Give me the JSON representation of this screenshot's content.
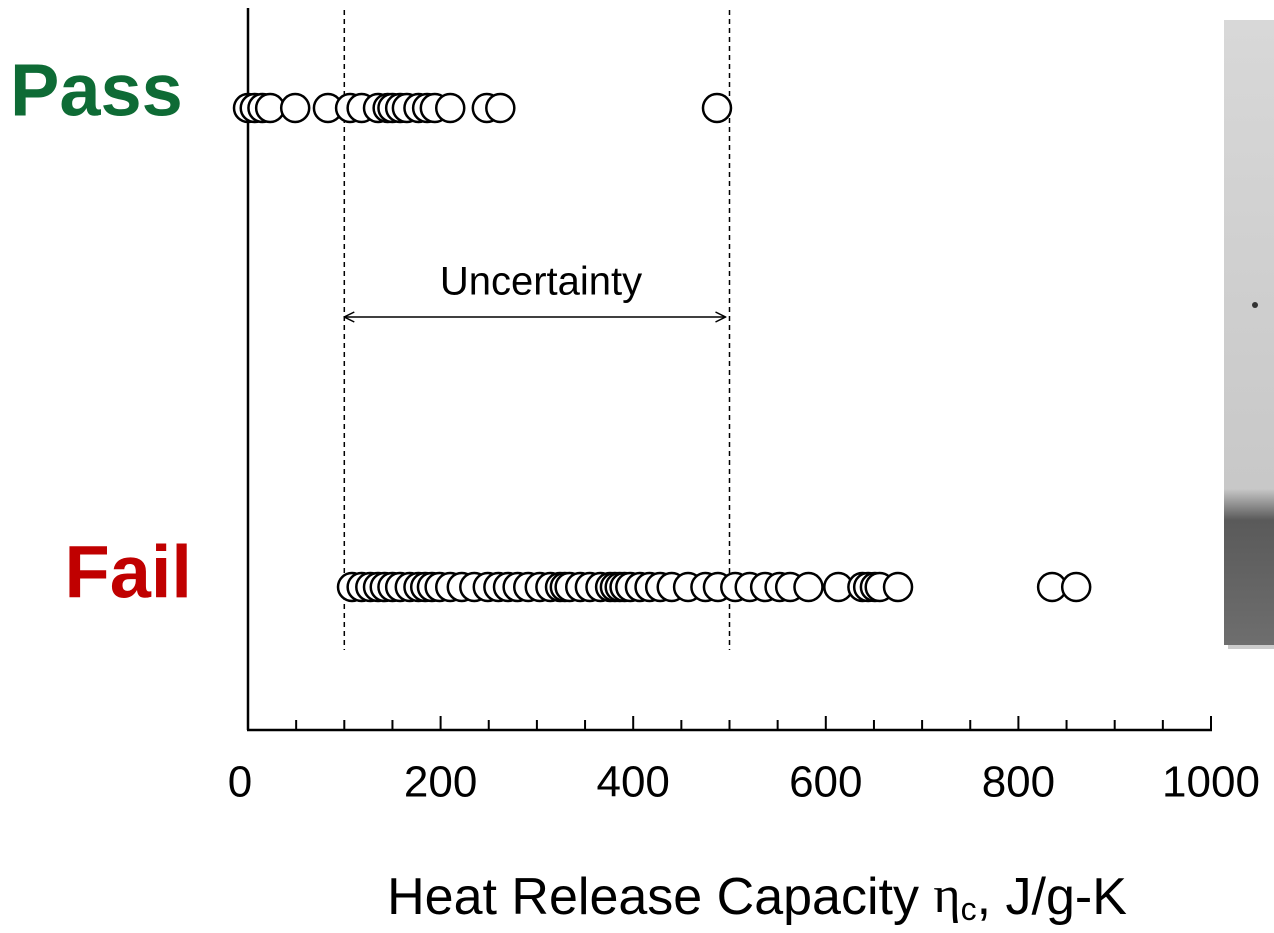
{
  "chart_data": {
    "type": "strip",
    "xlim": [
      0,
      1000
    ],
    "xticks": [
      0,
      200,
      400,
      600,
      800,
      1000
    ],
    "xminor_ticks": [
      50,
      100,
      150,
      250,
      300,
      350,
      450,
      500,
      550,
      650,
      700,
      750,
      850,
      900,
      950
    ],
    "xlabel": [
      "Heat Release Capacity ",
      "η",
      "c",
      ", J/g-K"
    ],
    "thresholds": [
      100,
      500
    ],
    "annotation": "Uncertainty",
    "series": [
      {
        "name": "Pass",
        "color": "#0e6b35",
        "values": [
          0,
          7,
          15,
          23,
          49,
          83,
          106,
          118,
          135,
          145,
          150,
          158,
          165,
          177,
          186,
          194,
          210,
          248,
          262,
          487
        ]
      },
      {
        "name": "Fail",
        "color": "#c00000",
        "values": [
          108,
          118,
          127,
          135,
          142,
          150,
          158,
          168,
          177,
          184,
          191,
          199,
          210,
          222,
          235,
          249,
          260,
          270,
          280,
          291,
          303,
          314,
          324,
          329,
          334,
          345,
          355,
          366,
          376,
          381,
          386,
          391,
          397,
          407,
          417,
          428,
          440,
          457,
          475,
          488,
          506,
          521,
          537,
          552,
          563,
          582,
          613,
          638,
          644,
          651,
          656,
          675,
          835,
          860
        ]
      }
    ]
  }
}
